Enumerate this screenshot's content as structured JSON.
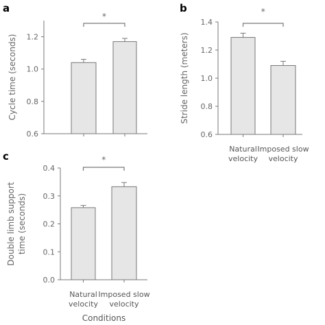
{
  "colors": {
    "bar_fill": "#e6e6e6",
    "bar_stroke": "#777777",
    "axis": "#777777",
    "text": "#666666"
  },
  "chart_data": [
    {
      "panel": "a",
      "type": "bar",
      "categories": [
        "",
        ""
      ],
      "values": [
        1.04,
        1.17
      ],
      "errors": [
        0.02,
        0.02
      ],
      "ylabel": "Cycle time (seconds)",
      "xlabel": "",
      "ylim": [
        0.6,
        1.3
      ],
      "yticks": [
        "0.6",
        "0.8",
        "1.0",
        "1.2"
      ],
      "significance": "*",
      "grid": false
    },
    {
      "panel": "b",
      "type": "bar",
      "categories": [
        "Natural\nvelocity",
        "Imposed slow\nvelocity"
      ],
      "values": [
        1.29,
        1.09
      ],
      "errors": [
        0.03,
        0.03
      ],
      "ylabel": "Stride length (meters)",
      "xlabel": "",
      "ylim": [
        0.6,
        1.4
      ],
      "yticks": [
        "0.6",
        "0.8",
        "1.0",
        "1.2",
        "1.4"
      ],
      "significance": "*",
      "grid": false
    },
    {
      "panel": "c",
      "type": "bar",
      "categories": [
        "Natural\nvelocity",
        "Imposed slow\nvelocity"
      ],
      "values": [
        0.258,
        0.333
      ],
      "errors": [
        0.008,
        0.015
      ],
      "ylabel": "Double limb support\ntime (seconds)",
      "xlabel": "Conditions",
      "ylim": [
        0.0,
        0.4
      ],
      "yticks": [
        "0.0",
        "0.1",
        "0.2",
        "0.3",
        "0.4"
      ],
      "significance": "*",
      "grid": false
    }
  ]
}
